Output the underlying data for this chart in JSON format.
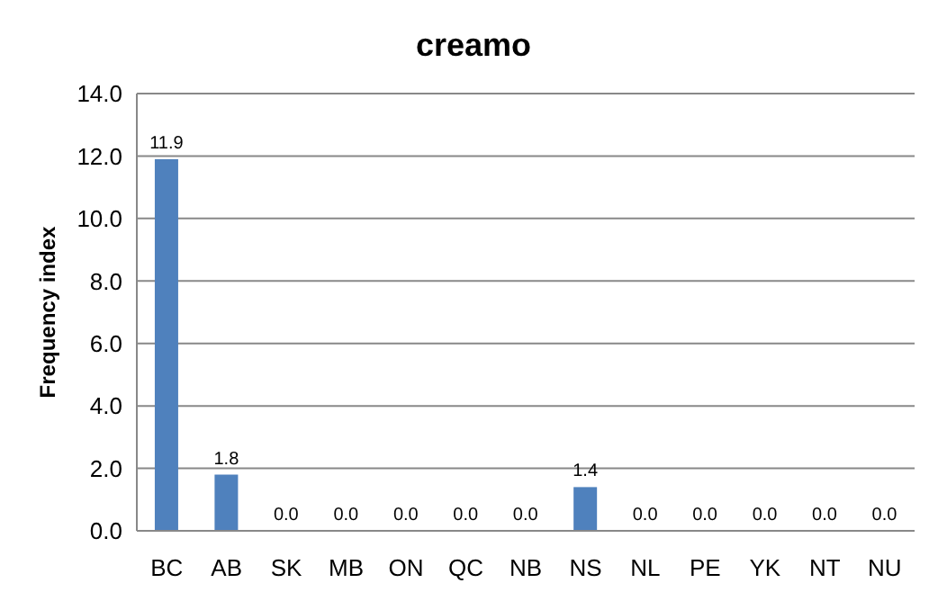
{
  "chart_data": {
    "type": "bar",
    "title": "creamo",
    "ylabel": "Frequency index",
    "categories": [
      "BC",
      "AB",
      "SK",
      "MB",
      "ON",
      "QC",
      "NB",
      "NS",
      "NL",
      "PE",
      "YK",
      "NT",
      "NU"
    ],
    "values": [
      11.9,
      1.8,
      0,
      0,
      0,
      0,
      0,
      1.4,
      0,
      0,
      0,
      0,
      0
    ],
    "value_labels": [
      "11.9",
      "1.8",
      "0.0",
      "0.0",
      "0.0",
      "0.0",
      "0.0",
      "1.4",
      "0.0",
      "0.0",
      "0.0",
      "0.0",
      "0.0"
    ],
    "color": "#4f81bd",
    "ylim": [
      0,
      14
    ],
    "yticks": [
      {
        "value": 0,
        "label": "0.0"
      },
      {
        "value": 2,
        "label": "2.0"
      },
      {
        "value": 4,
        "label": "4.0"
      },
      {
        "value": 6,
        "label": "6.0"
      },
      {
        "value": 8,
        "label": "8.0"
      },
      {
        "value": 10,
        "label": "10.0"
      },
      {
        "value": 12,
        "label": "12.0"
      },
      {
        "value": 14,
        "label": "14.0"
      }
    ],
    "grid": "y",
    "legend": false
  }
}
